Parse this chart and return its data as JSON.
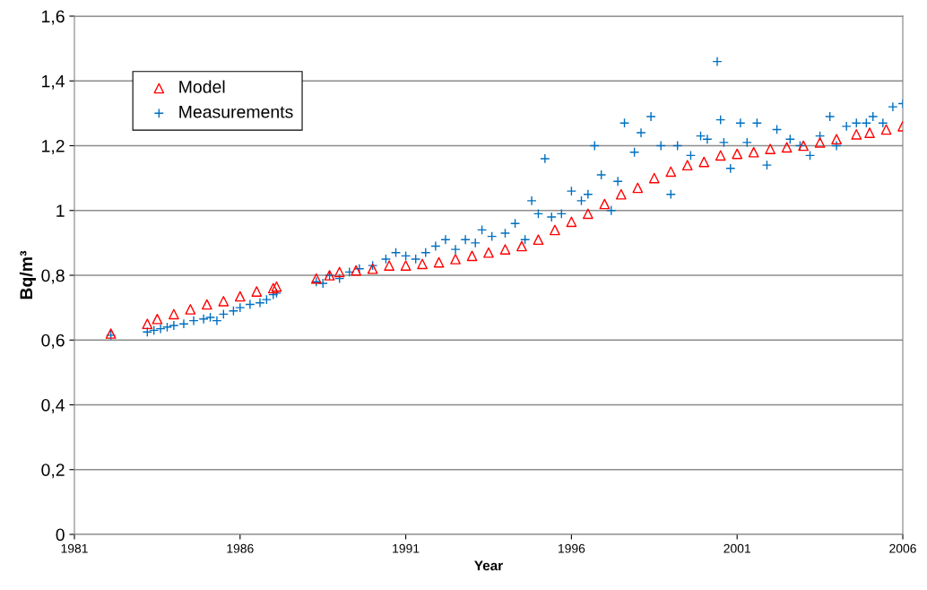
{
  "chart_data": {
    "type": "scatter",
    "xlabel": "Year",
    "ylabel": "Bq/m³",
    "xlim": [
      1981,
      2006
    ],
    "xticks": [
      1981,
      1986,
      1991,
      1996,
      2001,
      2006
    ],
    "ylim": [
      0,
      1.6
    ],
    "yticks": [
      0,
      {
        "value": 0.2,
        "label": "0,2"
      },
      {
        "value": 0.4,
        "label": "0,4"
      },
      {
        "value": 0.6,
        "label": "0,6"
      },
      {
        "value": 0.8,
        "label": "0,8"
      },
      1,
      {
        "value": 1.2,
        "label": "1,2"
      },
      {
        "value": 1.4,
        "label": "1,4"
      },
      {
        "value": 1.6,
        "label": "1,6"
      }
    ],
    "grid": "y",
    "legend": "top left",
    "series": [
      {
        "name": "Model",
        "color": "#ff0000",
        "marker": "triangle",
        "x": [
          1982.1,
          1983.2,
          1983.5,
          1984,
          1984.5,
          1985,
          1985.5,
          1986,
          1986.5,
          1987,
          1987.1,
          1988.3,
          1988.7,
          1989,
          1989.5,
          1990,
          1990.5,
          1991,
          1991.5,
          1992,
          1992.5,
          1993,
          1993.5,
          1994,
          1994.5,
          1995,
          1995.5,
          1996,
          1996.5,
          1997,
          1997.5,
          1998,
          1998.5,
          1999,
          1999.5,
          2000,
          2000.5,
          2001,
          2001.5,
          2002,
          2002.5,
          2003,
          2003.5,
          2004,
          2004.6,
          2005,
          2005.5,
          2006
        ],
        "values": [
          0.62,
          0.65,
          0.665,
          0.68,
          0.695,
          0.71,
          0.72,
          0.735,
          0.75,
          0.76,
          0.765,
          0.79,
          0.8,
          0.81,
          0.815,
          0.82,
          0.83,
          0.83,
          0.835,
          0.84,
          0.85,
          0.86,
          0.87,
          0.88,
          0.89,
          0.91,
          0.94,
          0.965,
          0.99,
          1.02,
          1.05,
          1.07,
          1.1,
          1.12,
          1.14,
          1.15,
          1.17,
          1.175,
          1.18,
          1.19,
          1.195,
          1.2,
          1.21,
          1.22,
          1.235,
          1.24,
          1.25,
          1.26
        ]
      },
      {
        "name": "Measurements",
        "color": "#0070c0",
        "marker": "cross",
        "x": [
          1982.1,
          1983.2,
          1983.4,
          1983.6,
          1983.8,
          1984,
          1984.3,
          1984.6,
          1984.9,
          1985.1,
          1985.3,
          1985.5,
          1985.8,
          1986,
          1986.3,
          1986.6,
          1986.8,
          1987,
          1987.1,
          1988.3,
          1988.5,
          1988.7,
          1989,
          1989.3,
          1989.6,
          1990,
          1990.4,
          1990.7,
          1991,
          1991.3,
          1991.6,
          1991.9,
          1992.2,
          1992.5,
          1992.8,
          1993.1,
          1993.3,
          1993.6,
          1994,
          1994.3,
          1994.6,
          1994.8,
          1995,
          1995.2,
          1995.4,
          1995.7,
          1996,
          1996.3,
          1996.5,
          1996.7,
          1996.9,
          1997.2,
          1997.4,
          1997.6,
          1997.9,
          1998.1,
          1998.4,
          1998.7,
          1999,
          1999.2,
          1999.6,
          1999.9,
          2000.1,
          2000.4,
          2000.5,
          2000.6,
          2000.8,
          2001.1,
          2001.3,
          2001.6,
          2001.9,
          2002.2,
          2002.6,
          2002.9,
          2003.2,
          2003.5,
          2003.8,
          2004,
          2004.3,
          2004.6,
          2004.9,
          2005.1,
          2005.4,
          2005.7,
          2006
        ],
        "values": [
          0.615,
          0.625,
          0.63,
          0.635,
          0.64,
          0.645,
          0.65,
          0.66,
          0.665,
          0.67,
          0.66,
          0.68,
          0.69,
          0.7,
          0.71,
          0.715,
          0.725,
          0.74,
          0.745,
          0.78,
          0.775,
          0.8,
          0.79,
          0.81,
          0.82,
          0.83,
          0.85,
          0.87,
          0.86,
          0.85,
          0.87,
          0.89,
          0.91,
          0.88,
          0.91,
          0.9,
          0.94,
          0.92,
          0.93,
          0.96,
          0.91,
          1.03,
          0.99,
          1.16,
          0.98,
          0.99,
          1.06,
          1.03,
          1.05,
          1.2,
          1.11,
          1.0,
          1.09,
          1.27,
          1.18,
          1.24,
          1.29,
          1.2,
          1.05,
          1.2,
          1.17,
          1.23,
          1.22,
          1.46,
          1.28,
          1.21,
          1.13,
          1.27,
          1.21,
          1.27,
          1.14,
          1.25,
          1.22,
          1.2,
          1.17,
          1.23,
          1.29,
          1.2,
          1.26,
          1.27,
          1.27,
          1.29,
          1.27,
          1.32,
          1.33
        ]
      }
    ]
  }
}
